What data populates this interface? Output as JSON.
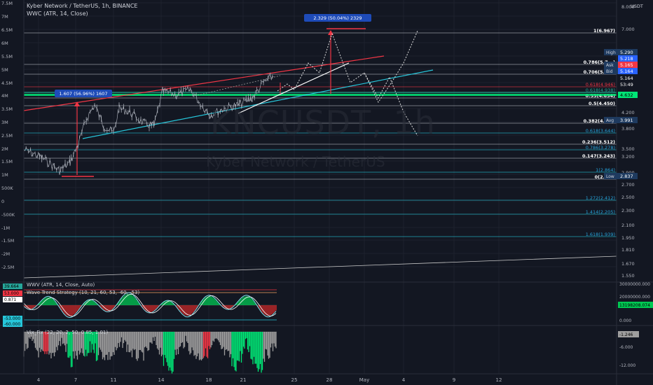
{
  "header": {
    "title": "Kyber Network / TetherUS, 1h, BINANCE",
    "indicator": "WWC (ATR, 14, Close)"
  },
  "watermark": {
    "symbol": "KNCUSDT, 1h",
    "name": "Kyber Network / TetherUS"
  },
  "currency": "USDT",
  "left_axis": [
    "7.5M",
    "7M",
    "6.5M",
    "6M",
    "5.5M",
    "5M",
    "4.5M",
    "4M",
    "3.5M",
    "3M",
    "2.5M",
    "2M",
    "1.5M",
    "1M",
    "500K",
    "0",
    "-500K",
    "-1M",
    "-1.5M",
    "-2M",
    "-2.5M"
  ],
  "right_axis": [
    "8.000",
    "7.000",
    "5.290",
    "5.218",
    "5.164",
    "4.632",
    "4.200",
    "3.991",
    "3.800",
    "3.500",
    "3.200",
    "2.900",
    "2.700",
    "2.500",
    "2.300",
    "2.100",
    "1.950",
    "1.810",
    "1.670",
    "1.550"
  ],
  "price_tags": [
    {
      "label": "High",
      "value": "5.290"
    },
    {
      "label": "",
      "value": "5.218"
    },
    {
      "label": "Ask",
      "value": "5.165"
    },
    {
      "label": "Bid",
      "value": "5.164"
    },
    {
      "label": "",
      "value": "5.164"
    },
    {
      "label": "",
      "value": "53:49"
    },
    {
      "label": "",
      "value": "4.632"
    },
    {
      "label": "Avg",
      "value": "3.991"
    },
    {
      "label": "Low",
      "value": "2.837"
    }
  ],
  "fib_levels": [
    {
      "label": "1(6.967)",
      "color": "#ffffff"
    },
    {
      "label": "0.786(5.7...)",
      "color": "#ffffff"
    },
    {
      "label": "0.706(5.3...)",
      "color": "#ffffff"
    },
    {
      "label": "0.618(4.946)",
      "color": "#f23645"
    },
    {
      "label": "0.618(4.938)",
      "color": "#22ab94"
    },
    {
      "label": "0.55(4.654)",
      "color": "#ffffff"
    },
    {
      "label": "0.5(4.450)",
      "color": "#ffffff"
    },
    {
      "label": "0.382(4.0...)",
      "color": "#ffffff"
    },
    {
      "label": "0.618(3.644)",
      "color": "#2196f3"
    },
    {
      "label": "0.236(3.512)",
      "color": "#ffffff"
    },
    {
      "label": "0.786(3.278)",
      "color": "#2196f3"
    },
    {
      "label": "0.147(3.243)",
      "color": "#ffffff"
    },
    {
      "label": "1(2.864)",
      "color": "#2196f3"
    },
    {
      "label": "0(2.8...)",
      "color": "#ffffff"
    },
    {
      "label": "1.272(2.412)",
      "color": "#2196f3"
    },
    {
      "label": "1.414(2.205)",
      "color": "#2196f3"
    },
    {
      "label": "1.618(1.939)",
      "color": "#2196f3"
    }
  ],
  "measure_labels": [
    {
      "text": "1.607 (56.96%) 1607"
    },
    {
      "text": "2.329 (50.04%) 2329"
    }
  ],
  "indicators": [
    {
      "name": "WWV (ATR, 14, Close, Auto)"
    },
    {
      "name": "Wave Trend Strategy (10, 21, 60, 53, -60, -53)"
    },
    {
      "name": "Vix_Fix (22, 20, 2, 50, 0.85, 1.01)"
    }
  ],
  "left_pane_tags": [
    "39.664",
    "53.000",
    "0.871",
    "-53.000",
    "-60.000"
  ],
  "pane_axis": [
    "30000000.000",
    "20000000.000",
    "13198208.074",
    "0.000",
    "-1.246",
    "-6.000",
    "-12.000"
  ],
  "x_axis": [
    "4",
    "7",
    "11",
    "14",
    "18",
    "21",
    "25",
    "28",
    "May",
    "4",
    "9",
    "12"
  ],
  "colors": {
    "bg": "#131722",
    "red": "#f23645",
    "teal": "#26c6da",
    "green": "#00e676",
    "grid": "#2a2e39"
  }
}
